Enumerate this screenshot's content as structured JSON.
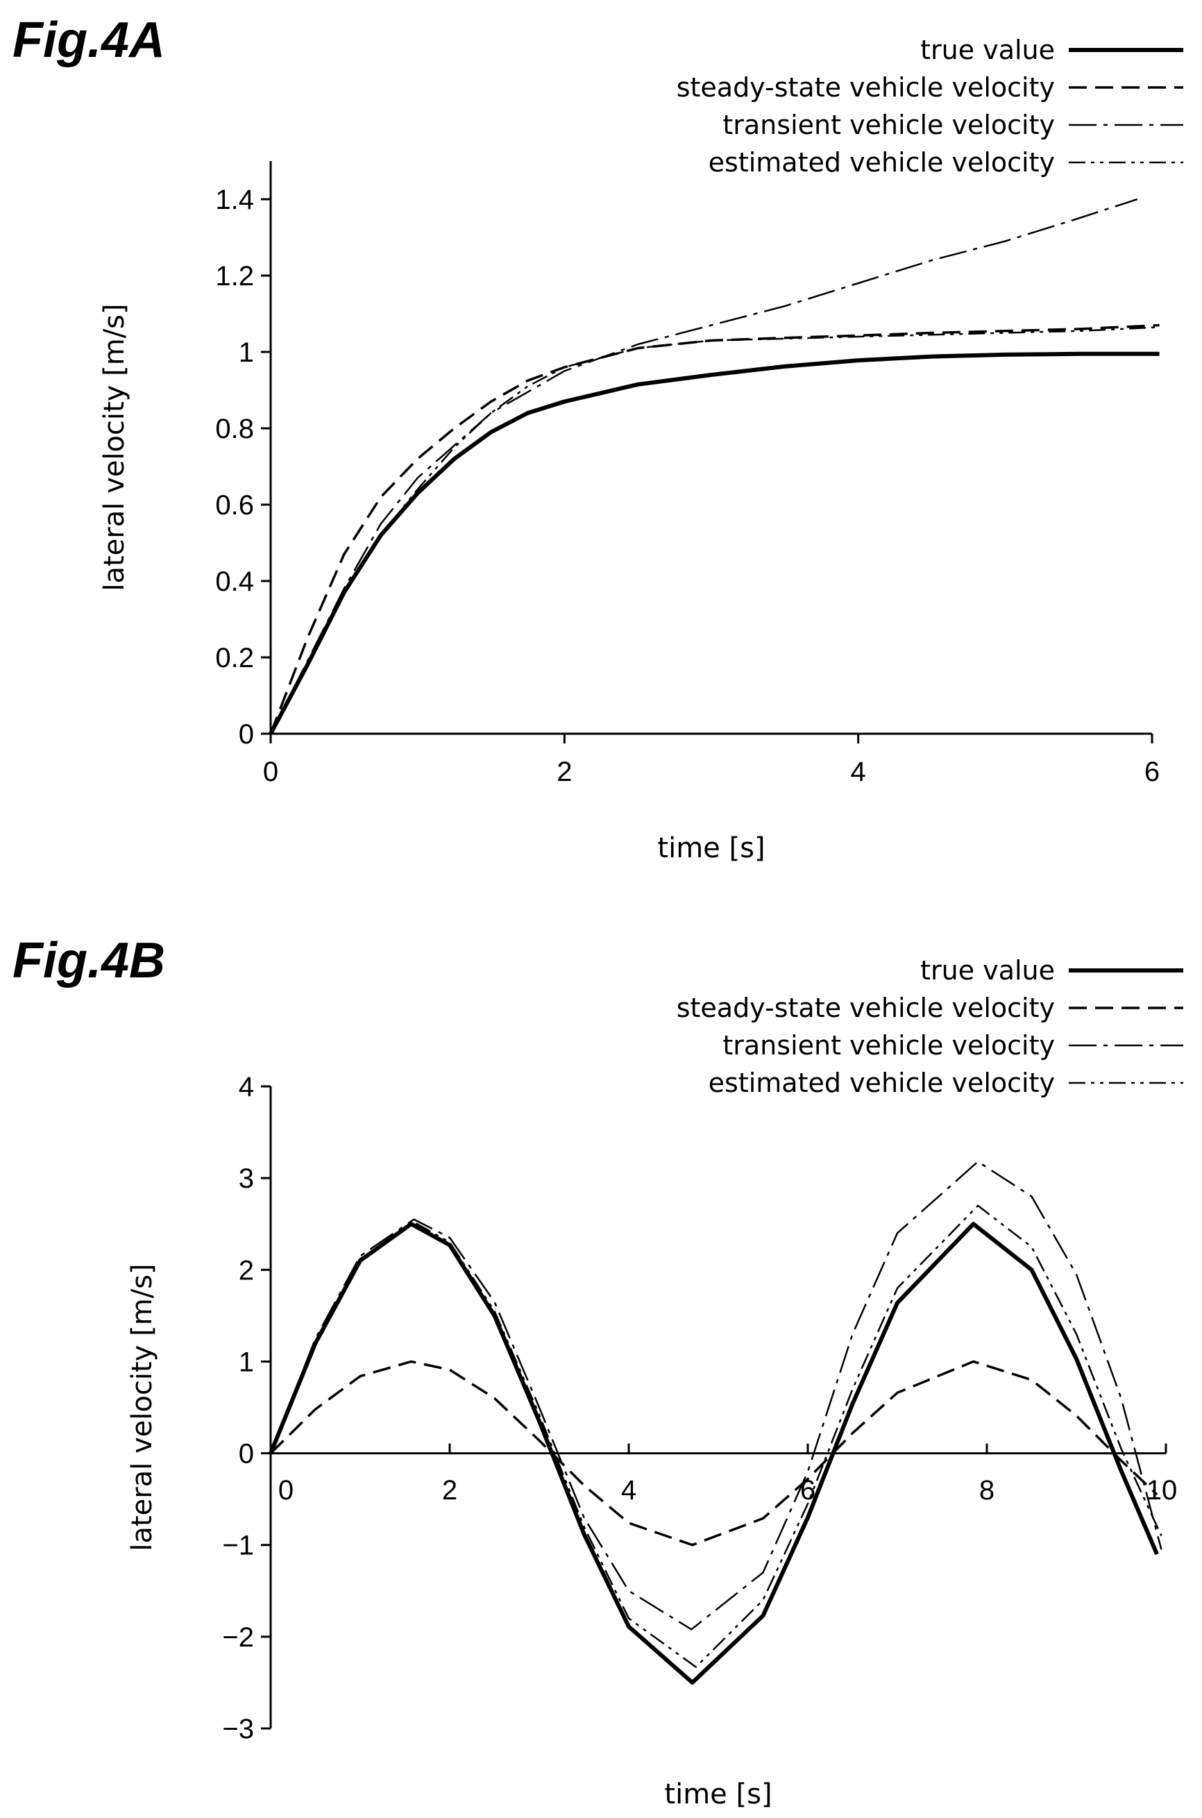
{
  "chart_data": [
    {
      "panel": "Fig.4A",
      "type": "line",
      "title": "Fig.4A",
      "xlabel": "time [s]",
      "ylabel": "lateral velocity [m/s]",
      "xlim": [
        0,
        6
      ],
      "ylim": [
        0,
        1.5
      ],
      "xticks": [
        0,
        2,
        4,
        6
      ],
      "xticklabels": [
        "0",
        "2",
        "4",
        "6"
      ],
      "yticks": [
        0,
        0.2,
        0.4,
        0.6,
        0.8,
        1.0,
        1.2,
        1.4
      ],
      "yticklabels": [
        "0",
        "0.2",
        "0.4",
        "0.6",
        "0.8",
        "1",
        "1.2",
        "1.4"
      ],
      "grid": false,
      "legend_position": "top-right",
      "series": [
        {
          "name": "true value",
          "style": "solid-thick",
          "x": [
            0,
            0.25,
            0.5,
            0.75,
            1.0,
            1.25,
            1.5,
            1.75,
            2.0,
            2.5,
            3.0,
            3.5,
            4.0,
            4.5,
            5.0,
            5.5,
            6.05
          ],
          "y": [
            0,
            0.18,
            0.37,
            0.52,
            0.63,
            0.72,
            0.79,
            0.84,
            0.87,
            0.915,
            0.94,
            0.962,
            0.978,
            0.988,
            0.993,
            0.995,
            0.995
          ]
        },
        {
          "name": "steady-state vehicle velocity",
          "style": "dashed",
          "x": [
            0,
            0.25,
            0.5,
            0.75,
            1.0,
            1.25,
            1.5,
            1.75,
            2.0,
            2.5,
            3.0,
            3.5,
            4.0,
            4.5,
            5.0,
            5.5,
            6.05
          ],
          "y": [
            0,
            0.25,
            0.47,
            0.62,
            0.72,
            0.8,
            0.87,
            0.925,
            0.96,
            1.01,
            1.03,
            1.037,
            1.043,
            1.05,
            1.055,
            1.06,
            1.07
          ]
        },
        {
          "name": "transient vehicle velocity",
          "style": "dash-dot",
          "x": [
            0,
            0.25,
            0.5,
            0.75,
            1.0,
            1.5,
            2.0,
            2.5,
            3.0,
            3.5,
            4.0,
            4.5,
            5.0,
            5.5,
            5.9
          ],
          "y": [
            0,
            0.19,
            0.38,
            0.55,
            0.67,
            0.84,
            0.95,
            1.02,
            1.07,
            1.12,
            1.18,
            1.24,
            1.29,
            1.35,
            1.4
          ]
        },
        {
          "name": "estimated vehicle velocity",
          "style": "dash-dot-dot",
          "x": [
            0,
            0.25,
            0.5,
            0.75,
            1.0,
            1.25,
            1.5,
            1.75,
            2.0,
            2.5,
            3.0,
            3.5,
            4.0,
            4.5,
            5.0,
            5.5,
            6.05
          ],
          "y": [
            0,
            0.18,
            0.37,
            0.52,
            0.64,
            0.75,
            0.84,
            0.91,
            0.96,
            1.01,
            1.03,
            1.035,
            1.04,
            1.045,
            1.05,
            1.055,
            1.065
          ]
        }
      ]
    },
    {
      "panel": "Fig.4B",
      "type": "line",
      "title": "Fig.4B",
      "xlabel": "time [s]",
      "ylabel": "lateral velocity [m/s]",
      "xlim": [
        0,
        10
      ],
      "ylim": [
        -3,
        4
      ],
      "xticks": [
        0,
        2,
        4,
        6,
        8,
        10
      ],
      "xticklabels": [
        "0",
        "2",
        "4",
        "6",
        "8",
        "10"
      ],
      "yticks": [
        -3,
        -2,
        -1,
        0,
        1,
        2,
        3,
        4
      ],
      "yticklabels": [
        "−3",
        "−2",
        "−1",
        "0",
        "1",
        "2",
        "3",
        "4"
      ],
      "grid": false,
      "legend_position": "top-right",
      "series": [
        {
          "name": "true value",
          "style": "solid-thick",
          "x": [
            0,
            0.5,
            1.0,
            1.57,
            2.0,
            2.5,
            3.0,
            3.5,
            4.0,
            4.71,
            5.5,
            6.0,
            6.5,
            7.0,
            7.85,
            8.5,
            9.0,
            9.5,
            9.9
          ],
          "y": [
            0,
            1.2,
            2.1,
            2.5,
            2.27,
            1.5,
            0.35,
            -0.88,
            -1.89,
            -2.5,
            -1.77,
            -0.7,
            0.54,
            1.64,
            2.5,
            2.0,
            1.03,
            -0.19,
            -1.1
          ]
        },
        {
          "name": "steady-state vehicle velocity",
          "style": "dashed",
          "x": [
            0,
            0.5,
            1.0,
            1.57,
            2.0,
            2.5,
            3.0,
            3.5,
            4.0,
            4.71,
            5.5,
            6.0,
            6.5,
            7.0,
            7.85,
            8.5,
            9.0,
            9.5,
            9.9
          ],
          "y": [
            0,
            0.48,
            0.84,
            1.0,
            0.91,
            0.6,
            0.14,
            -0.35,
            -0.76,
            -1.0,
            -0.71,
            -0.28,
            0.22,
            0.66,
            1.0,
            0.8,
            0.41,
            -0.08,
            -0.45
          ]
        },
        {
          "name": "transient vehicle velocity",
          "style": "dash-dot",
          "x": [
            0,
            0.5,
            1.0,
            1.6,
            2.0,
            2.5,
            3.0,
            3.5,
            4.0,
            4.7,
            5.5,
            6.0,
            6.5,
            7.0,
            7.9,
            8.5,
            9.0,
            9.5,
            9.95
          ],
          "y": [
            0,
            1.25,
            2.15,
            2.55,
            2.35,
            1.65,
            0.5,
            -0.7,
            -1.5,
            -1.92,
            -1.3,
            -0.2,
            1.3,
            2.4,
            3.18,
            2.8,
            1.95,
            0.6,
            -1.05
          ]
        },
        {
          "name": "estimated vehicle velocity",
          "style": "dash-dot-dot",
          "x": [
            0,
            0.5,
            1.0,
            1.6,
            2.0,
            2.5,
            3.0,
            3.5,
            4.0,
            4.75,
            5.5,
            6.0,
            6.5,
            7.0,
            7.9,
            8.5,
            9.0,
            9.5,
            9.95
          ],
          "y": [
            0,
            1.2,
            2.12,
            2.52,
            2.3,
            1.55,
            0.42,
            -0.8,
            -1.8,
            -2.33,
            -1.6,
            -0.55,
            0.7,
            1.8,
            2.7,
            2.25,
            1.3,
            0.05,
            -0.9
          ]
        }
      ]
    }
  ]
}
